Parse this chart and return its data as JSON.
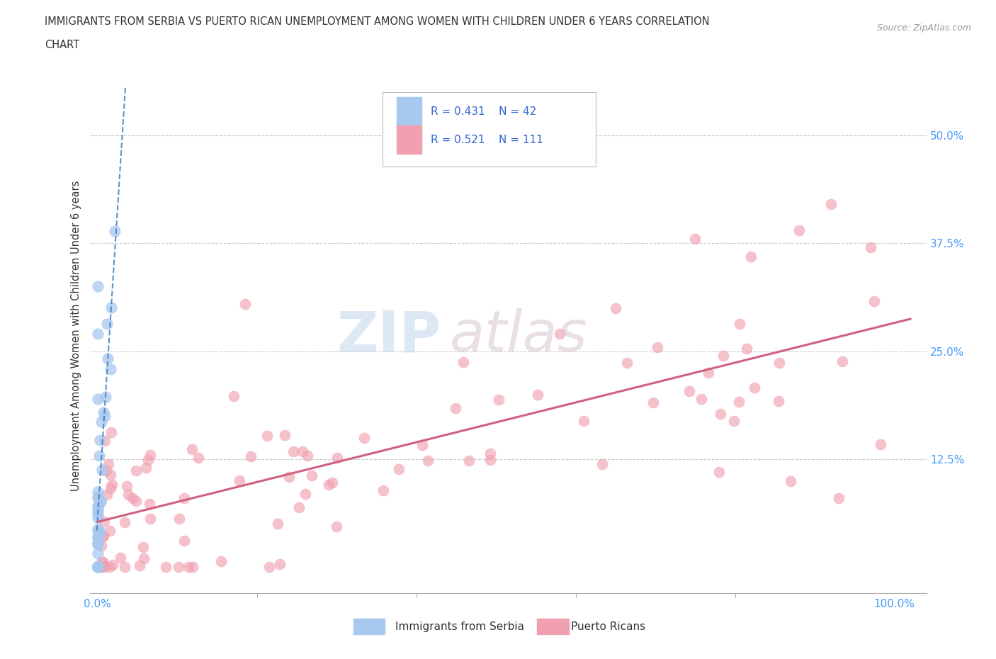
{
  "title_line1": "IMMIGRANTS FROM SERBIA VS PUERTO RICAN UNEMPLOYMENT AMONG WOMEN WITH CHILDREN UNDER 6 YEARS CORRELATION",
  "title_line2": "CHART",
  "source_text": "Source: ZipAtlas.com",
  "ylabel": "Unemployment Among Women with Children Under 6 years",
  "serbia_R": 0.431,
  "serbia_N": 42,
  "puertorico_R": 0.521,
  "puertorico_N": 111,
  "serbia_color": "#a8c8f0",
  "puertorico_color": "#f0a0b0",
  "serbia_line_color": "#4080c0",
  "puertorico_line_color": "#d06080",
  "watermark_zip": "ZIP",
  "watermark_atlas": "atlas",
  "grid_color": "#cccccc",
  "tick_color": "#4499ff",
  "title_color": "#333333",
  "source_color": "#999999",
  "legend_text_color": "#3366cc",
  "bottom_legend_color": "#333333"
}
